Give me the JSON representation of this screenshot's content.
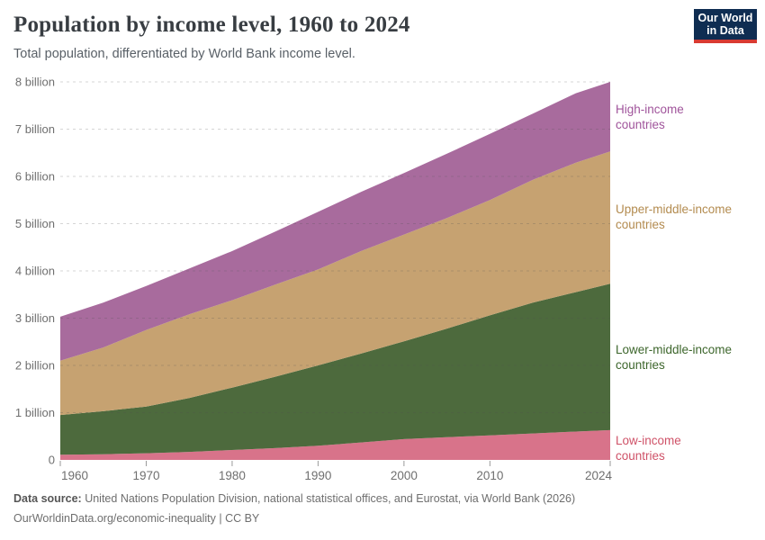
{
  "header": {
    "title": "Population by income level, 1960 to 2024",
    "subtitle": "Total population, differentiated by World Bank income level.",
    "logo": {
      "line1": "Our World",
      "line2": "in Data"
    }
  },
  "footer": {
    "source_label": "Data source:",
    "source_text": " United Nations Population Division, national statistical offices, and Eurostat, via World Bank (2026)",
    "citation": "OurWorldinData.org/economic-inequality | CC BY"
  },
  "chart_data": {
    "type": "area",
    "stacked": true,
    "title": "Population by income level, 1960 to 2024",
    "subtitle": "Total population, differentiated by World Bank income level.",
    "unit": "billion people",
    "grid": "dashed horizontal",
    "legend_position": "right-edge series labels",
    "ylim": [
      0,
      8
    ],
    "y_ticks": [
      {
        "value": 0,
        "label": "0"
      },
      {
        "value": 1,
        "label": "1 billion"
      },
      {
        "value": 2,
        "label": "2 billion"
      },
      {
        "value": 3,
        "label": "3 billion"
      },
      {
        "value": 4,
        "label": "4 billion"
      },
      {
        "value": 5,
        "label": "5 billion"
      },
      {
        "value": 6,
        "label": "6 billion"
      },
      {
        "value": 7,
        "label": "7 billion"
      },
      {
        "value": 8,
        "label": "8 billion"
      }
    ],
    "x_ticks": [
      1960,
      1970,
      1980,
      1990,
      2000,
      2010,
      2024
    ],
    "x": [
      1960,
      1965,
      1970,
      1975,
      1980,
      1985,
      1990,
      1995,
      2000,
      2005,
      2010,
      2015,
      2020,
      2024
    ],
    "series": [
      {
        "id": "low_income",
        "label": "Low-income countries",
        "label_lines": [
          "Low-income",
          "countries"
        ],
        "color": "#d8738a",
        "label_color": "#cf5268",
        "values": [
          0.11,
          0.12,
          0.14,
          0.17,
          0.21,
          0.25,
          0.3,
          0.37,
          0.44,
          0.48,
          0.52,
          0.56,
          0.6,
          0.63
        ]
      },
      {
        "id": "lower_middle_income",
        "label": "Lower-middle-income countries",
        "label_lines": [
          "Lower-middle-income",
          "countries"
        ],
        "color": "#4d6a3d",
        "label_color": "#3d662c",
        "values": [
          0.84,
          0.91,
          0.99,
          1.14,
          1.32,
          1.51,
          1.7,
          1.88,
          2.07,
          2.3,
          2.54,
          2.77,
          2.95,
          3.1
        ]
      },
      {
        "id": "upper_middle_income",
        "label": "Upper-middle-income countries",
        "label_lines": [
          "Upper-middle-income",
          "countries"
        ],
        "color": "#c6a271",
        "label_color": "#b38b4f",
        "values": [
          1.15,
          1.35,
          1.62,
          1.77,
          1.85,
          1.95,
          2.03,
          2.17,
          2.26,
          2.34,
          2.44,
          2.6,
          2.74,
          2.8
        ]
      },
      {
        "id": "high_income",
        "label": "High-income countries",
        "label_lines": [
          "High-income",
          "countries"
        ],
        "color": "#a86b9d",
        "label_color": "#a0549b",
        "values": [
          0.93,
          0.95,
          0.93,
          0.97,
          1.04,
          1.12,
          1.22,
          1.25,
          1.3,
          1.36,
          1.4,
          1.4,
          1.47,
          1.47
        ]
      }
    ],
    "totals_by_x": [
      3.03,
      3.33,
      3.68,
      4.05,
      4.42,
      4.83,
      5.25,
      5.67,
      6.07,
      6.48,
      6.9,
      7.33,
      7.76,
      8.0
    ]
  }
}
